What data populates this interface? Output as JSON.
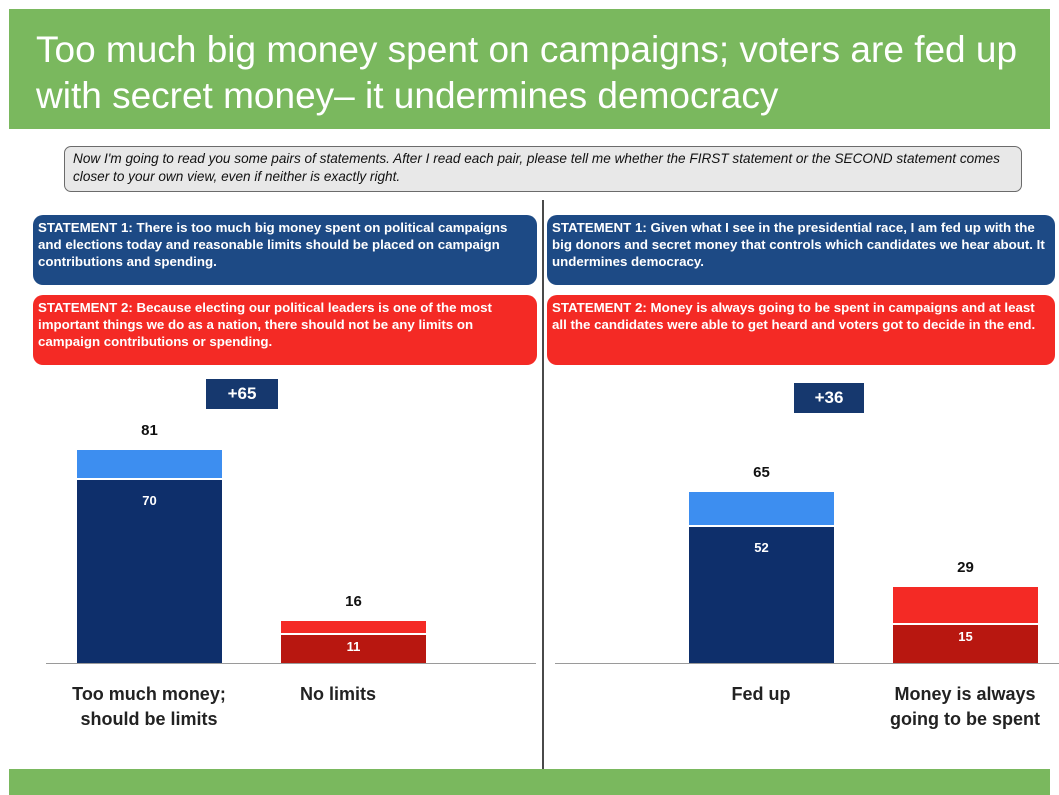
{
  "title": "Too much big money spent on campaigns; voters are fed up with secret money– it undermines democracy",
  "question": "Now I'm going to read you some pairs of statements. After I read each pair, please tell me whether the FIRST statement or the SECOND statement comes closer to your own view, even if neither is exactly right.",
  "colors": {
    "banner_green": "#7ab85e",
    "statement1_blue": "#1d4a85",
    "statement2_red": "#f42a25",
    "strong_blue": "#0e2f6b",
    "weak_blue": "#3d8ef0",
    "strong_red": "#b81710",
    "weak_red": "#f42a25",
    "badge_navy": "#16386e"
  },
  "panels": [
    {
      "statement1_label": "STATEMENT 1:",
      "statement1_text": "There is too much big money spent on political campaigns and elections today and reasonable limits should be placed on campaign contributions and spending.",
      "statement2_label": "STATEMENT 2:",
      "statement2_text": "Because electing our political leaders is one of the most important things we do as a nation, there should not be any limits on campaign contributions or spending.",
      "net": "+65"
    },
    {
      "statement1_label": "STATEMENT 1:",
      "statement1_text": "Given what I see in the presidential race, I am fed up with the big donors and secret money that controls which candidates we hear about. It undermines democracy.",
      "statement2_label": "STATEMENT 2:",
      "statement2_text": "Money is always going to be spent in campaigns and at least all the candidates were able to get heard and voters got to decide in the end.",
      "net": "+36"
    }
  ],
  "chart_data": [
    {
      "type": "bar",
      "stacked": true,
      "categories": [
        "Too much money;\nshould be limits",
        "No limits"
      ],
      "totals": [
        81,
        16
      ],
      "strong": [
        70,
        11
      ],
      "net": "+65",
      "bar_colors": [
        [
          "#0e2f6b",
          "#3d8ef0"
        ],
        [
          "#b81710",
          "#f42a25"
        ]
      ]
    },
    {
      "type": "bar",
      "stacked": true,
      "categories": [
        "Fed up",
        "Money is always\ngoing to be spent"
      ],
      "totals": [
        65,
        29
      ],
      "strong": [
        52,
        15
      ],
      "net": "+36",
      "bar_colors": [
        [
          "#0e2f6b",
          "#3d8ef0"
        ],
        [
          "#b81710",
          "#f42a25"
        ]
      ]
    }
  ]
}
